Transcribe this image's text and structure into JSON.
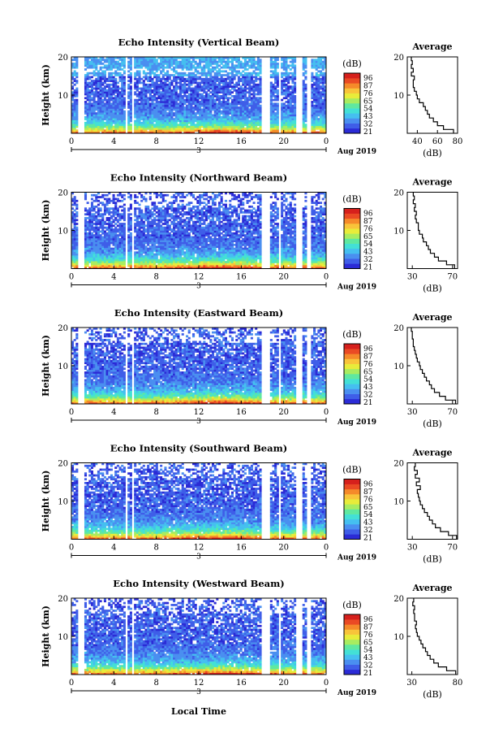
{
  "chart_data": [
    {
      "type": "heatmap",
      "title": "Echo Intensity (Vertical Beam)",
      "ylabel": "Height (km)",
      "y_ticks": [
        "20",
        "10"
      ],
      "ylim": [
        0,
        20
      ],
      "x_ticks": [
        "0",
        "4",
        "8",
        "12",
        "16",
        "20",
        "0"
      ],
      "xlim": [
        0,
        24
      ],
      "date_marker": "3",
      "date_label": "Aug 2019",
      "colorbar_title": "(dB)",
      "colorbar_ticks": [
        "96",
        "87",
        "76",
        "65",
        "54",
        "43",
        "32",
        "21"
      ],
      "profile_title": "Average",
      "profile_xlabel": "(dB)",
      "profile_x_ticks": [
        "40",
        "60",
        "80"
      ],
      "profile_xlim": [
        30,
        80
      ],
      "profile_y_ticks": [
        "20",
        "10"
      ],
      "profile": {
        "height": [
          1,
          2,
          3,
          4,
          5,
          6,
          7,
          8,
          9,
          10,
          11,
          12,
          13,
          14,
          15,
          16,
          17,
          18,
          19,
          20
        ],
        "db": [
          76,
          66,
          60,
          56,
          52,
          50,
          48,
          46,
          42,
          40,
          39,
          37,
          36,
          36,
          37,
          34,
          36,
          34,
          35,
          34
        ]
      }
    },
    {
      "type": "heatmap",
      "title": "Echo Intensity (Northward Beam)",
      "ylabel": "Height (km)",
      "y_ticks": [
        "20",
        "10"
      ],
      "ylim": [
        0,
        20
      ],
      "x_ticks": [
        "0",
        "4",
        "8",
        "12",
        "16",
        "20",
        "0"
      ],
      "xlim": [
        0,
        24
      ],
      "date_marker": "3",
      "date_label": "Aug 2019",
      "colorbar_title": "(dB)",
      "colorbar_ticks": [
        "96",
        "87",
        "76",
        "65",
        "54",
        "43",
        "32",
        "21"
      ],
      "profile_title": "Average",
      "profile_xlabel": "(dB)",
      "profile_x_ticks": [
        "30",
        "70"
      ],
      "profile_xlim": [
        25,
        75
      ],
      "profile_y_ticks": [
        "20",
        "10"
      ],
      "profile": {
        "height": [
          1,
          2,
          3,
          4,
          5,
          6,
          7,
          8,
          9,
          10,
          11,
          12,
          13,
          14,
          15,
          16,
          17,
          18,
          19,
          20
        ],
        "db": [
          72,
          64,
          56,
          52,
          48,
          46,
          44,
          41,
          40,
          37,
          36,
          36,
          34,
          33,
          34,
          32,
          33,
          31,
          32,
          31
        ]
      }
    },
    {
      "type": "heatmap",
      "title": "Echo Intensity (Eastward Beam)",
      "ylabel": "Height (km)",
      "y_ticks": [
        "20",
        "10"
      ],
      "ylim": [
        0,
        20
      ],
      "x_ticks": [
        "0",
        "4",
        "8",
        "12",
        "16",
        "20",
        "0"
      ],
      "xlim": [
        0,
        24
      ],
      "date_marker": "3",
      "date_label": "Aug 2019",
      "colorbar_title": "(dB)",
      "colorbar_ticks": [
        "96",
        "87",
        "76",
        "65",
        "54",
        "43",
        "32",
        "21"
      ],
      "profile_title": "Average",
      "profile_xlabel": "(dB)",
      "profile_x_ticks": [
        "30",
        "70"
      ],
      "profile_xlim": [
        25,
        75
      ],
      "profile_y_ticks": [
        "20",
        "10"
      ],
      "profile": {
        "height": [
          1,
          2,
          3,
          4,
          5,
          6,
          7,
          8,
          9,
          10,
          11,
          12,
          13,
          14,
          15,
          16,
          17,
          18,
          19,
          20
        ],
        "db": [
          73,
          63,
          57,
          52,
          49,
          47,
          44,
          42,
          40,
          38,
          37,
          35,
          34,
          33,
          32,
          31,
          31,
          30,
          30,
          29
        ]
      }
    },
    {
      "type": "heatmap",
      "title": "Echo Intensity (Southward Beam)",
      "ylabel": "Height (km)",
      "y_ticks": [
        "20",
        "10"
      ],
      "ylim": [
        0,
        20
      ],
      "x_ticks": [
        "0",
        "4",
        "8",
        "12",
        "16",
        "20",
        "0"
      ],
      "xlim": [
        0,
        24
      ],
      "date_marker": "3",
      "date_label": "Aug 2019",
      "colorbar_title": "(dB)",
      "colorbar_ticks": [
        "96",
        "87",
        "76",
        "65",
        "54",
        "43",
        "32",
        "21"
      ],
      "profile_title": "Average",
      "profile_xlabel": "(dB)",
      "profile_x_ticks": [
        "30",
        "70"
      ],
      "profile_xlim": [
        25,
        75
      ],
      "profile_y_ticks": [
        "20",
        "10"
      ],
      "profile": {
        "height": [
          1,
          2,
          3,
          4,
          5,
          6,
          7,
          8,
          9,
          10,
          11,
          12,
          13,
          14,
          15,
          16,
          17,
          18,
          19,
          20
        ],
        "db": [
          74,
          66,
          58,
          53,
          50,
          47,
          45,
          42,
          40,
          38,
          37,
          36,
          35,
          38,
          34,
          37,
          33,
          35,
          32,
          33
        ]
      }
    },
    {
      "type": "heatmap",
      "title": "Echo Intensity (Westward Beam)",
      "ylabel": "Height (km)",
      "y_ticks": [
        "20",
        "10"
      ],
      "ylim": [
        0,
        20
      ],
      "x_ticks": [
        "0",
        "4",
        "8",
        "12",
        "16",
        "20",
        "0"
      ],
      "xlim": [
        0,
        24
      ],
      "date_marker": "3",
      "date_label": "Aug 2019",
      "colorbar_title": "(dB)",
      "colorbar_ticks": [
        "96",
        "87",
        "76",
        "65",
        "54",
        "43",
        "32",
        "21"
      ],
      "profile_title": "Average",
      "profile_xlabel": "(dB)",
      "profile_x_ticks": [
        "30",
        "80"
      ],
      "profile_xlim": [
        25,
        80
      ],
      "profile_y_ticks": [
        "20",
        "10"
      ],
      "profile": {
        "height": [
          1,
          2,
          3,
          4,
          5,
          6,
          7,
          8,
          9,
          10,
          11,
          12,
          13,
          14,
          15,
          16,
          17,
          18,
          19,
          20
        ],
        "db": [
          78,
          68,
          59,
          54,
          50,
          47,
          45,
          42,
          40,
          38,
          36,
          35,
          34,
          35,
          33,
          33,
          32,
          33,
          31,
          32
        ]
      }
    }
  ],
  "x_axis_label": "Local Time",
  "colorscale": [
    "#2b2bd6",
    "#3f5ee8",
    "#4a8ff0",
    "#45bff0",
    "#43e0d6",
    "#5fe8a0",
    "#a8ec60",
    "#e8ec3a",
    "#f8c43a",
    "#f58a2a",
    "#ea4a24",
    "#d6201c"
  ],
  "data_gap_hours": [
    [
      0.6,
      1.3
    ],
    [
      5.0,
      5.3
    ],
    [
      5.6,
      5.8
    ],
    [
      18.0,
      18.8
    ],
    [
      19.5,
      19.7
    ],
    [
      20.3,
      20.4
    ],
    [
      21.2,
      21.7
    ],
    [
      22.2,
      22.5
    ]
  ]
}
